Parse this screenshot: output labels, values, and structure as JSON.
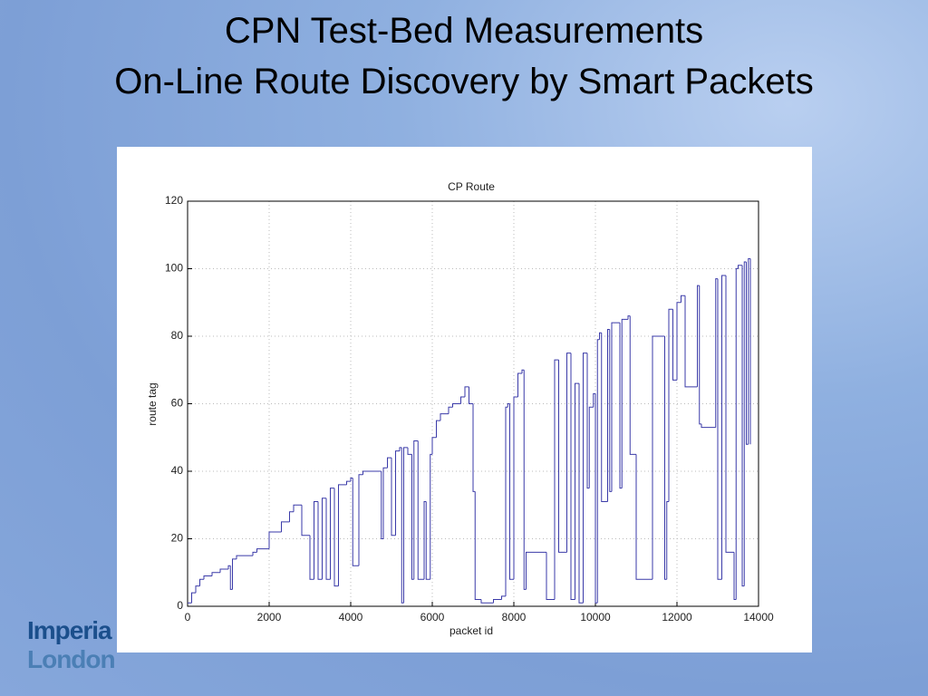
{
  "slide_title": [
    "CPN Test-Bed Measurements",
    "On-Line Route Discovery by Smart Packets"
  ],
  "logo": [
    "Imperia",
    "London"
  ],
  "chart_data": {
    "type": "step",
    "title": "CP Route",
    "x_label": "packet id",
    "y_label": "route tag",
    "color": "#3a3aa8",
    "grid": true,
    "xlim": [
      0,
      14000
    ],
    "ylim": [
      0,
      120
    ],
    "xticks": [
      0,
      2000,
      4000,
      6000,
      8000,
      10000,
      12000,
      14000
    ],
    "yticks": [
      0,
      20,
      40,
      60,
      80,
      100,
      120
    ],
    "x": [
      0,
      100,
      200,
      300,
      400,
      600,
      800,
      1000,
      1050,
      1100,
      1200,
      1600,
      1700,
      2000,
      2300,
      2500,
      2600,
      2800,
      3000,
      3100,
      3200,
      3300,
      3400,
      3500,
      3600,
      3700,
      3900,
      4000,
      4050,
      4200,
      4300,
      4750,
      4800,
      4900,
      5000,
      5100,
      5200,
      5250,
      5300,
      5400,
      5500,
      5550,
      5650,
      5800,
      5850,
      5950,
      6000,
      6100,
      6200,
      6400,
      6500,
      6700,
      6800,
      6900,
      7000,
      7050,
      7200,
      7500,
      7700,
      7800,
      7850,
      7900,
      8000,
      8100,
      8200,
      8250,
      8300,
      8800,
      9000,
      9100,
      9300,
      9400,
      9500,
      9600,
      9700,
      9800,
      9850,
      9950,
      10000,
      10050,
      10100,
      10150,
      10300,
      10350,
      10400,
      10600,
      10650,
      10800,
      10850,
      11000,
      11400,
      11700,
      11750,
      11800,
      11900,
      12000,
      12100,
      12200,
      12500,
      12550,
      12600,
      12950,
      13000,
      13100,
      13200,
      13400,
      13450,
      13500,
      13600,
      13650,
      13700,
      13750,
      13800
    ],
    "values": [
      1,
      4,
      6,
      8,
      9,
      10,
      11,
      12,
      5,
      14,
      15,
      16,
      17,
      22,
      25,
      28,
      30,
      21,
      8,
      31,
      8,
      32,
      8,
      35,
      6,
      36,
      37,
      38,
      12,
      39,
      40,
      20,
      41,
      44,
      21,
      46,
      47,
      1,
      47,
      45,
      8,
      49,
      8,
      31,
      8,
      45,
      50,
      55,
      57,
      59,
      60,
      62,
      65,
      60,
      34,
      2,
      1,
      2,
      3,
      59,
      60,
      8,
      62,
      69,
      70,
      5,
      16,
      2,
      73,
      16,
      75,
      2,
      66,
      1,
      75,
      35,
      59,
      63,
      1,
      79,
      81,
      31,
      82,
      34,
      84,
      35,
      85,
      86,
      45,
      8,
      80,
      8,
      31,
      88,
      67,
      90,
      92,
      65,
      95,
      54,
      53,
      97,
      8,
      98,
      16,
      2,
      100,
      101,
      6,
      102,
      48,
      103,
      48
    ]
  }
}
